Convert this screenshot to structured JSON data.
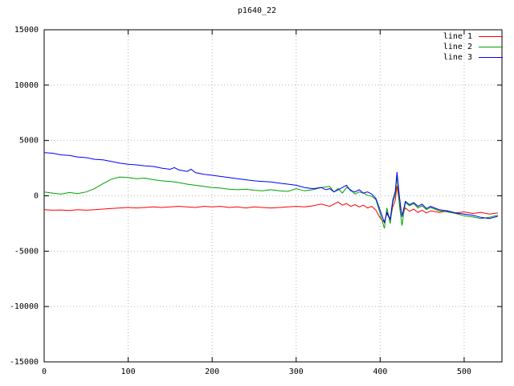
{
  "chart_data": {
    "type": "line",
    "title": "p1640_22",
    "xlabel": "",
    "ylabel": "",
    "xlim": [
      0,
      545
    ],
    "ylim": [
      -15000,
      15000
    ],
    "xticks": [
      0,
      100,
      200,
      300,
      400,
      500
    ],
    "yticks": [
      -15000,
      -10000,
      -5000,
      0,
      5000,
      10000,
      15000
    ],
    "grid": true,
    "grid_style": "dotted",
    "legend_position": "top-right",
    "background_color": "#ffffff",
    "axis_color": "#000000",
    "grid_color": "#b3b3b3",
    "series": [
      {
        "name": "line 1",
        "color": "#ff0000",
        "points": [
          [
            0,
            -1250
          ],
          [
            10,
            -1300
          ],
          [
            20,
            -1280
          ],
          [
            30,
            -1320
          ],
          [
            40,
            -1250
          ],
          [
            50,
            -1300
          ],
          [
            60,
            -1250
          ],
          [
            70,
            -1200
          ],
          [
            80,
            -1150
          ],
          [
            90,
            -1100
          ],
          [
            100,
            -1050
          ],
          [
            110,
            -1100
          ],
          [
            120,
            -1050
          ],
          [
            130,
            -1000
          ],
          [
            140,
            -1050
          ],
          [
            150,
            -1000
          ],
          [
            160,
            -950
          ],
          [
            170,
            -1000
          ],
          [
            180,
            -1050
          ],
          [
            190,
            -950
          ],
          [
            200,
            -1000
          ],
          [
            210,
            -950
          ],
          [
            220,
            -1050
          ],
          [
            230,
            -1000
          ],
          [
            240,
            -1100
          ],
          [
            250,
            -1000
          ],
          [
            260,
            -1050
          ],
          [
            270,
            -1100
          ],
          [
            280,
            -1050
          ],
          [
            290,
            -1000
          ],
          [
            300,
            -950
          ],
          [
            310,
            -1000
          ],
          [
            320,
            -900
          ],
          [
            330,
            -750
          ],
          [
            340,
            -950
          ],
          [
            350,
            -550
          ],
          [
            355,
            -850
          ],
          [
            360,
            -700
          ],
          [
            365,
            -950
          ],
          [
            370,
            -800
          ],
          [
            375,
            -1000
          ],
          [
            380,
            -850
          ],
          [
            385,
            -1100
          ],
          [
            390,
            -950
          ],
          [
            395,
            -1300
          ],
          [
            400,
            -2000
          ],
          [
            405,
            -2400
          ],
          [
            408,
            -1600
          ],
          [
            412,
            -2200
          ],
          [
            415,
            -1000
          ],
          [
            418,
            -400
          ],
          [
            420,
            900
          ],
          [
            423,
            -700
          ],
          [
            426,
            -1700
          ],
          [
            430,
            -1100
          ],
          [
            435,
            -1400
          ],
          [
            440,
            -1200
          ],
          [
            445,
            -1500
          ],
          [
            450,
            -1300
          ],
          [
            455,
            -1550
          ],
          [
            460,
            -1350
          ],
          [
            470,
            -1500
          ],
          [
            480,
            -1400
          ],
          [
            490,
            -1550
          ],
          [
            500,
            -1450
          ],
          [
            510,
            -1600
          ],
          [
            520,
            -1500
          ],
          [
            530,
            -1650
          ],
          [
            540,
            -1550
          ]
        ]
      },
      {
        "name": "line 2",
        "color": "#00a000",
        "points": [
          [
            0,
            350
          ],
          [
            10,
            250
          ],
          [
            20,
            150
          ],
          [
            30,
            300
          ],
          [
            40,
            200
          ],
          [
            50,
            350
          ],
          [
            60,
            650
          ],
          [
            70,
            1100
          ],
          [
            80,
            1500
          ],
          [
            90,
            1700
          ],
          [
            100,
            1650
          ],
          [
            110,
            1550
          ],
          [
            120,
            1600
          ],
          [
            130,
            1450
          ],
          [
            140,
            1350
          ],
          [
            150,
            1300
          ],
          [
            160,
            1200
          ],
          [
            170,
            1050
          ],
          [
            180,
            950
          ],
          [
            190,
            850
          ],
          [
            200,
            750
          ],
          [
            210,
            700
          ],
          [
            220,
            600
          ],
          [
            230,
            550
          ],
          [
            240,
            600
          ],
          [
            250,
            500
          ],
          [
            260,
            450
          ],
          [
            270,
            550
          ],
          [
            280,
            450
          ],
          [
            290,
            400
          ],
          [
            300,
            650
          ],
          [
            310,
            450
          ],
          [
            320,
            550
          ],
          [
            330,
            750
          ],
          [
            340,
            850
          ],
          [
            345,
            350
          ],
          [
            350,
            650
          ],
          [
            355,
            250
          ],
          [
            360,
            750
          ],
          [
            365,
            550
          ],
          [
            370,
            150
          ],
          [
            375,
            350
          ],
          [
            380,
            250
          ],
          [
            385,
            50
          ],
          [
            390,
            -50
          ],
          [
            395,
            -350
          ],
          [
            400,
            -1600
          ],
          [
            405,
            -2950
          ],
          [
            408,
            -1100
          ],
          [
            412,
            -2500
          ],
          [
            415,
            -600
          ],
          [
            418,
            100
          ],
          [
            420,
            1900
          ],
          [
            423,
            -900
          ],
          [
            426,
            -2700
          ],
          [
            430,
            -600
          ],
          [
            435,
            -900
          ],
          [
            440,
            -700
          ],
          [
            445,
            -1100
          ],
          [
            450,
            -900
          ],
          [
            455,
            -1250
          ],
          [
            460,
            -1050
          ],
          [
            470,
            -1350
          ],
          [
            480,
            -1450
          ],
          [
            490,
            -1600
          ],
          [
            500,
            -1800
          ],
          [
            510,
            -1900
          ],
          [
            520,
            -2050
          ],
          [
            530,
            -1950
          ],
          [
            540,
            -1750
          ]
        ]
      },
      {
        "name": "line 3",
        "color": "#0000ff",
        "points": [
          [
            0,
            3900
          ],
          [
            10,
            3850
          ],
          [
            20,
            3700
          ],
          [
            30,
            3650
          ],
          [
            40,
            3500
          ],
          [
            50,
            3450
          ],
          [
            60,
            3300
          ],
          [
            70,
            3250
          ],
          [
            80,
            3100
          ],
          [
            90,
            2950
          ],
          [
            100,
            2850
          ],
          [
            110,
            2800
          ],
          [
            120,
            2700
          ],
          [
            130,
            2650
          ],
          [
            140,
            2500
          ],
          [
            150,
            2400
          ],
          [
            155,
            2550
          ],
          [
            160,
            2350
          ],
          [
            170,
            2200
          ],
          [
            175,
            2400
          ],
          [
            180,
            2100
          ],
          [
            190,
            1950
          ],
          [
            200,
            1850
          ],
          [
            210,
            1750
          ],
          [
            220,
            1650
          ],
          [
            230,
            1550
          ],
          [
            240,
            1450
          ],
          [
            250,
            1350
          ],
          [
            260,
            1300
          ],
          [
            270,
            1250
          ],
          [
            280,
            1150
          ],
          [
            290,
            1050
          ],
          [
            300,
            950
          ],
          [
            310,
            750
          ],
          [
            320,
            650
          ],
          [
            330,
            750
          ],
          [
            335,
            550
          ],
          [
            340,
            650
          ],
          [
            345,
            350
          ],
          [
            350,
            550
          ],
          [
            355,
            750
          ],
          [
            360,
            950
          ],
          [
            365,
            450
          ],
          [
            370,
            350
          ],
          [
            375,
            550
          ],
          [
            380,
            250
          ],
          [
            385,
            350
          ],
          [
            390,
            150
          ],
          [
            395,
            -250
          ],
          [
            400,
            -1300
          ],
          [
            405,
            -2400
          ],
          [
            408,
            -1500
          ],
          [
            412,
            -2100
          ],
          [
            415,
            -400
          ],
          [
            418,
            400
          ],
          [
            420,
            2150
          ],
          [
            423,
            -100
          ],
          [
            426,
            -1900
          ],
          [
            430,
            -500
          ],
          [
            435,
            -800
          ],
          [
            440,
            -600
          ],
          [
            445,
            -950
          ],
          [
            450,
            -750
          ],
          [
            455,
            -1150
          ],
          [
            460,
            -950
          ],
          [
            470,
            -1250
          ],
          [
            480,
            -1350
          ],
          [
            490,
            -1550
          ],
          [
            500,
            -1650
          ],
          [
            510,
            -1750
          ],
          [
            520,
            -1950
          ],
          [
            530,
            -2050
          ],
          [
            540,
            -1850
          ]
        ]
      }
    ]
  }
}
